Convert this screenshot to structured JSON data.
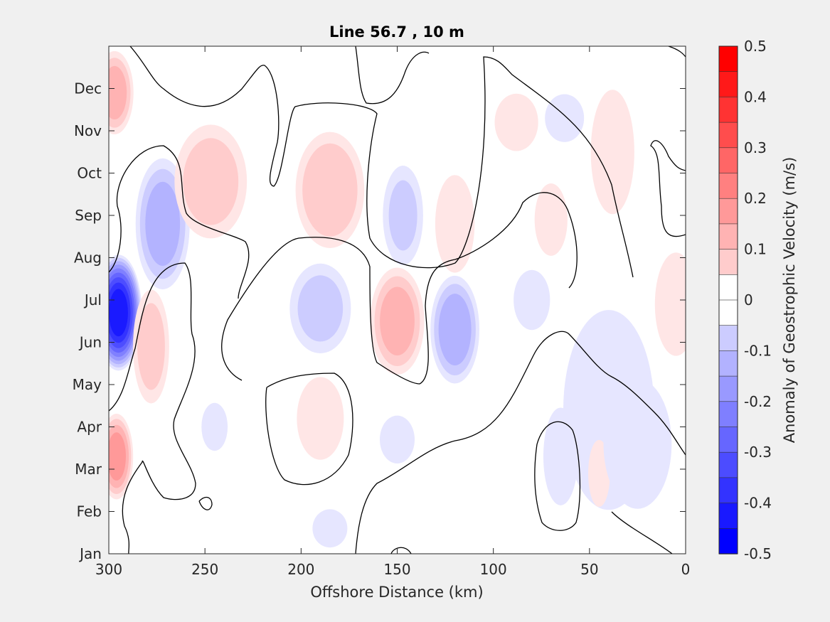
{
  "chart_data": {
    "type": "heatmap",
    "title": "Line 56.7 , 10 m",
    "xlabel": "Offshore Distance (km)",
    "ylabel": "",
    "x_reversed": true,
    "xlim": [
      0,
      300
    ],
    "x_ticks": [
      300,
      250,
      200,
      150,
      100,
      50,
      0
    ],
    "y_ticks": [
      "Jan",
      "Feb",
      "Mar",
      "Apr",
      "May",
      "Jun",
      "Jul",
      "Aug",
      "Sep",
      "Oct",
      "Nov",
      "Dec"
    ],
    "colorbar": {
      "label": "Anomaly of Geostrophic Velocity (m/s)",
      "range": [
        -0.5,
        0.5
      ],
      "ticks": [
        "0.5",
        "0.4",
        "0.3",
        "0.2",
        "0.1",
        "0",
        "-0.1",
        "-0.2",
        "-0.3",
        "-0.4",
        "-0.5"
      ],
      "negative_color": "#0000ff",
      "positive_color": "#ff0000",
      "levels": 20
    },
    "anomaly_features": [
      {
        "x_km": 295,
        "month": 5.7,
        "value": -0.48,
        "wx": 8,
        "wy": 0.9
      },
      {
        "x_km": 296,
        "month": 2.3,
        "value": 0.22,
        "wx": 6,
        "wy": 0.7
      },
      {
        "x_km": 297,
        "month": 10.9,
        "value": 0.17,
        "wx": 7,
        "wy": 0.7
      },
      {
        "x_km": 272,
        "month": 7.8,
        "value": -0.17,
        "wx": 10,
        "wy": 1.1
      },
      {
        "x_km": 278,
        "month": 4.9,
        "value": 0.12,
        "wx": 7,
        "wy": 1.0
      },
      {
        "x_km": 247,
        "month": 8.8,
        "value": 0.12,
        "wx": 14,
        "wy": 1.0
      },
      {
        "x_km": 185,
        "month": 8.6,
        "value": 0.14,
        "wx": 13,
        "wy": 1.0
      },
      {
        "x_km": 147,
        "month": 8.0,
        "value": -0.1,
        "wx": 8,
        "wy": 0.9
      },
      {
        "x_km": 120,
        "month": 7.8,
        "value": 0.09,
        "wx": 8,
        "wy": 0.9
      },
      {
        "x_km": 70,
        "month": 7.9,
        "value": 0.07,
        "wx": 7,
        "wy": 0.7
      },
      {
        "x_km": 88,
        "month": 10.2,
        "value": 0.05,
        "wx": 10,
        "wy": 0.6
      },
      {
        "x_km": 63,
        "month": 10.3,
        "value": -0.05,
        "wx": 9,
        "wy": 0.5
      },
      {
        "x_km": 38,
        "month": 9.5,
        "value": 0.05,
        "wx": 10,
        "wy": 1.3
      },
      {
        "x_km": 190,
        "month": 5.8,
        "value": -0.11,
        "wx": 12,
        "wy": 0.8
      },
      {
        "x_km": 150,
        "month": 5.5,
        "value": 0.17,
        "wx": 10,
        "wy": 0.9
      },
      {
        "x_km": 120,
        "month": 5.3,
        "value": -0.18,
        "wx": 9,
        "wy": 0.9
      },
      {
        "x_km": 80,
        "month": 6.0,
        "value": -0.06,
        "wx": 8,
        "wy": 0.6
      },
      {
        "x_km": 5,
        "month": 5.9,
        "value": 0.07,
        "wx": 9,
        "wy": 1.0
      },
      {
        "x_km": 190,
        "month": 3.2,
        "value": 0.07,
        "wx": 10,
        "wy": 0.8
      },
      {
        "x_km": 245,
        "month": 3.0,
        "value": -0.05,
        "wx": 6,
        "wy": 0.5
      },
      {
        "x_km": 150,
        "month": 2.7,
        "value": -0.05,
        "wx": 8,
        "wy": 0.5
      },
      {
        "x_km": 65,
        "month": 2.3,
        "value": -0.09,
        "wx": 7,
        "wy": 0.9
      },
      {
        "x_km": 40,
        "month": 3.4,
        "value": -0.06,
        "wx": 20,
        "wy": 2.0
      },
      {
        "x_km": 45,
        "month": 1.9,
        "value": 0.05,
        "wx": 5,
        "wy": 0.7
      },
      {
        "x_km": 25,
        "month": 2.6,
        "value": -0.06,
        "wx": 15,
        "wy": 1.3
      },
      {
        "x_km": 185,
        "month": 0.6,
        "value": -0.05,
        "wx": 8,
        "wy": 0.4
      },
      {
        "x_km": 220,
        "month": 12.0,
        "value": -0.04,
        "wx": 10,
        "wy": 0.5
      }
    ]
  }
}
